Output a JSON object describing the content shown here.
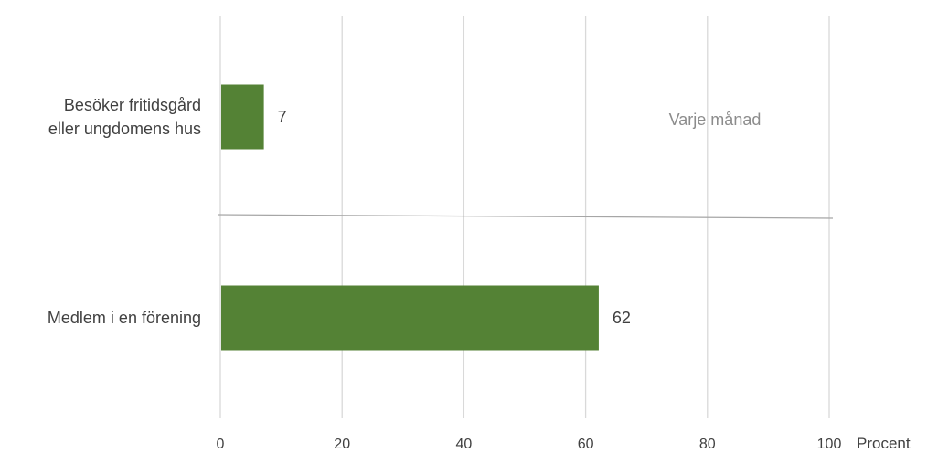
{
  "chart_data": {
    "type": "bar",
    "orientation": "horizontal",
    "categories": [
      "Besöker fritidsgård\neller ungdomens hus",
      "Medlem i en förening"
    ],
    "values": [
      7,
      62
    ],
    "data_labels": [
      "7",
      "62"
    ],
    "xlabel": "Procent",
    "xlim": [
      0,
      100
    ],
    "x_ticks": [
      0,
      20,
      40,
      60,
      80,
      100
    ],
    "annotation": "Varje månad",
    "grid": true,
    "legend": "none",
    "colors": {
      "bar": "#548235",
      "grid": "#d9d9d9",
      "divider": "#a6a6a6",
      "text": "#404040",
      "annotation": "#8c8c8c"
    }
  }
}
